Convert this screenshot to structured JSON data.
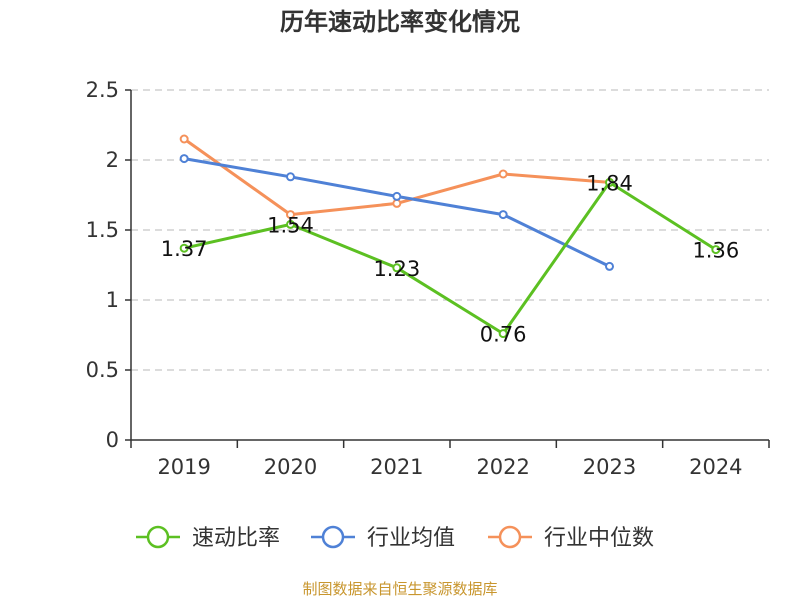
{
  "chart_data": {
    "type": "line",
    "title": "历年速动比率变化情况",
    "categories": [
      "2019",
      "2020",
      "2021",
      "2022",
      "2023",
      "2024"
    ],
    "ylim": [
      0,
      2.5
    ],
    "yticks": [
      "0",
      "0.5",
      "1",
      "1.5",
      "2",
      "2.5"
    ],
    "grid": true,
    "legend_position": "bottom",
    "series": [
      {
        "name": "速动比率",
        "color": "#5cc022",
        "values": [
          1.37,
          1.54,
          1.23,
          0.76,
          1.84,
          1.36
        ],
        "labels": [
          "1.37",
          "1.54",
          "1.23",
          "0.76",
          "1.84",
          "1.36"
        ]
      },
      {
        "name": "行业均值",
        "color": "#4f81d6",
        "values": [
          2.01,
          1.88,
          1.74,
          1.61,
          1.24,
          null
        ]
      },
      {
        "name": "行业中位数",
        "color": "#f5915a",
        "values": [
          2.15,
          1.61,
          1.69,
          1.9,
          1.84,
          null
        ]
      }
    ]
  },
  "footer": {
    "source": "制图数据来自恒生聚源数据库"
  }
}
